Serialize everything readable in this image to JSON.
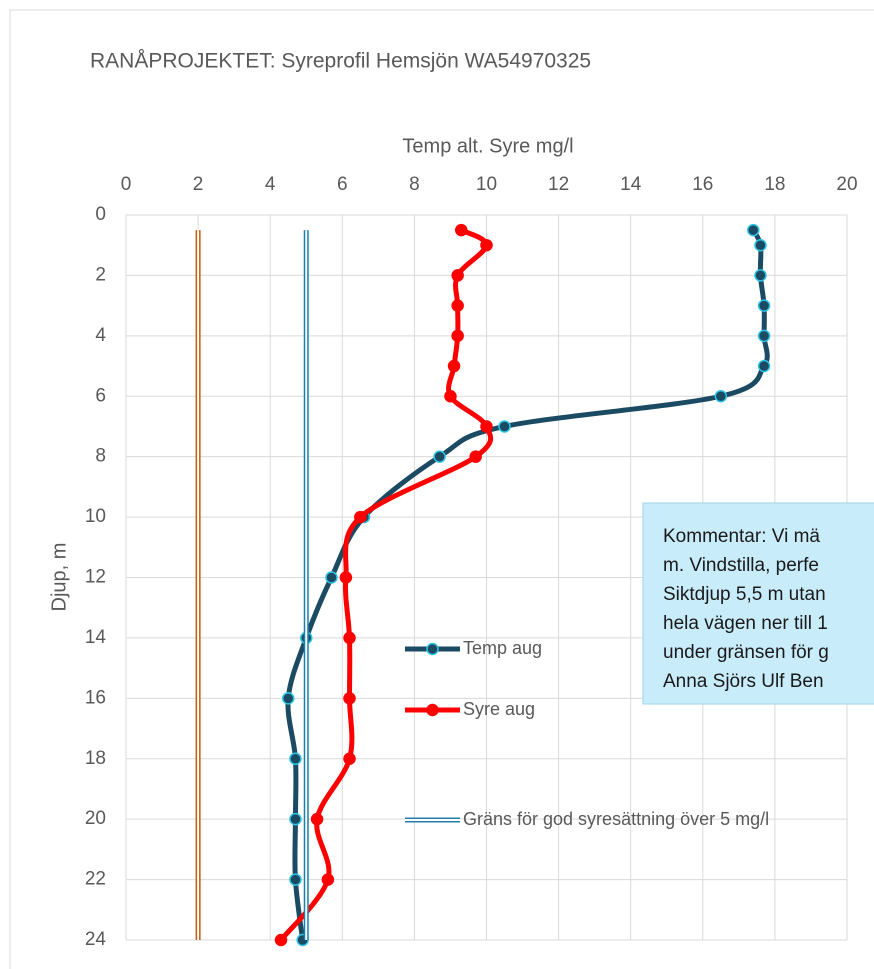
{
  "chart_data": {
    "type": "line",
    "title": "RANÅPROJEKTET: Syreprofil Hemsjön WA54970325",
    "xlabel": "Temp alt. Syre mg/l",
    "ylabel": "Djup, m",
    "xlim": [
      0,
      20
    ],
    "xticks": [
      0,
      2,
      4,
      6,
      8,
      10,
      12,
      14,
      16,
      18,
      20
    ],
    "ylim": [
      0,
      24
    ],
    "yticks": [
      0,
      2,
      4,
      6,
      8,
      10,
      12,
      14,
      16,
      18,
      20,
      22,
      24
    ],
    "y_inverted": true,
    "x_axis_position": "top",
    "grid": true,
    "series": [
      {
        "name": "Temp aug",
        "color": "#1b4a63",
        "marker_edge": "#2ec4e6",
        "style": "smooth-marker",
        "values": [
          17.4,
          17.6,
          17.6,
          17.7,
          17.7,
          17.7,
          16.5,
          10.5,
          8.7,
          6.6,
          5.7,
          5.0,
          4.5,
          4.7,
          4.7,
          4.7,
          4.9
        ],
        "depths": [
          0.5,
          1,
          2,
          3,
          4,
          5,
          6,
          7,
          8,
          10,
          12,
          14,
          16,
          18,
          20,
          22,
          24
        ]
      },
      {
        "name": "Syre aug",
        "color": "#ff0000",
        "marker_edge": "#ff0000",
        "style": "smooth-marker",
        "values": [
          9.3,
          10.0,
          9.2,
          9.2,
          9.2,
          9.1,
          9.0,
          10.0,
          9.7,
          6.5,
          6.1,
          6.2,
          6.2,
          6.2,
          5.3,
          5.6,
          4.3
        ],
        "depths": [
          0.5,
          1,
          2,
          3,
          4,
          5,
          6,
          7,
          8,
          10,
          12,
          14,
          16,
          18,
          20,
          22,
          24
        ]
      },
      {
        "name": "Gräns för god syresättning över 5 mg/l",
        "color": "#1f7fa8",
        "style": "double",
        "values": [
          5,
          5
        ],
        "depths": [
          0.5,
          24
        ]
      },
      {
        "color": "#c55a11",
        "style": "double",
        "values": [
          2,
          2
        ],
        "depths": [
          0.5,
          24
        ]
      }
    ],
    "annotation": [
      "Kommentar: Vi mä",
      "m. Vindstilla, perfe",
      "Siktdjup 5,5 m utan",
      "hela vägen ner till 1",
      "under gränsen för g",
      "Anna Sjörs Ulf Ben"
    ]
  }
}
